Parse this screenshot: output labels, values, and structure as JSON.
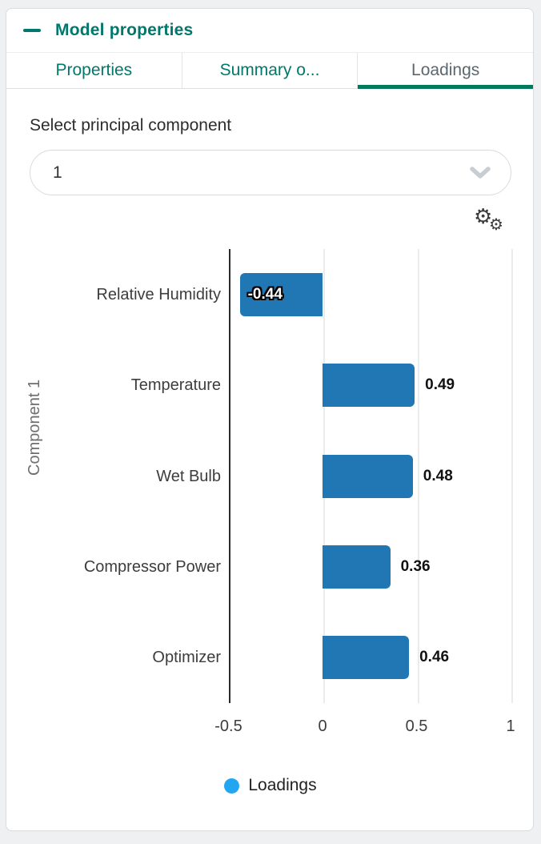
{
  "header": {
    "title": "Model properties"
  },
  "tabs": [
    {
      "label": "Properties",
      "active": false
    },
    {
      "label": "Summary o...",
      "active": false
    },
    {
      "label": "Loadings",
      "active": true
    }
  ],
  "controls": {
    "select_label": "Select principal component",
    "dropdown_value": "1"
  },
  "icons": {
    "collapse": "minus-icon",
    "dropdown": "chevron-down-icon",
    "settings": "double-gear-icon"
  },
  "colors": {
    "accent_teal": "#00786c",
    "active_tab_underline": "#00795c",
    "active_tab_text": "#5b6770",
    "bar_blue": "#2077b4",
    "legend_blue": "#23a6f2",
    "axis_line": "#2b2b2b",
    "card_border": "#d9dbde"
  },
  "chart_data": {
    "type": "bar",
    "orientation": "horizontal",
    "categories": [
      "Relative Humidity",
      "Temperature",
      "Wet Bulb",
      "Compressor Power",
      "Optimizer"
    ],
    "values": [
      -0.44,
      0.49,
      0.48,
      0.36,
      0.46
    ],
    "value_labels": [
      "-0.44",
      "0.49",
      "0.48",
      "0.36",
      "0.46"
    ],
    "ylabel": "Component 1",
    "xlabel": "",
    "xticks": [
      -0.5,
      0,
      0.5,
      1
    ],
    "xtick_labels": [
      "-0.5",
      "0",
      "0.5",
      "1"
    ],
    "xlim": [
      -0.5,
      1.1
    ],
    "grid": true,
    "bar_color": "#2077b4",
    "legend": [
      {
        "label": "Loadings",
        "color": "#23a6f2"
      }
    ],
    "legend_position": "bottom-center"
  }
}
